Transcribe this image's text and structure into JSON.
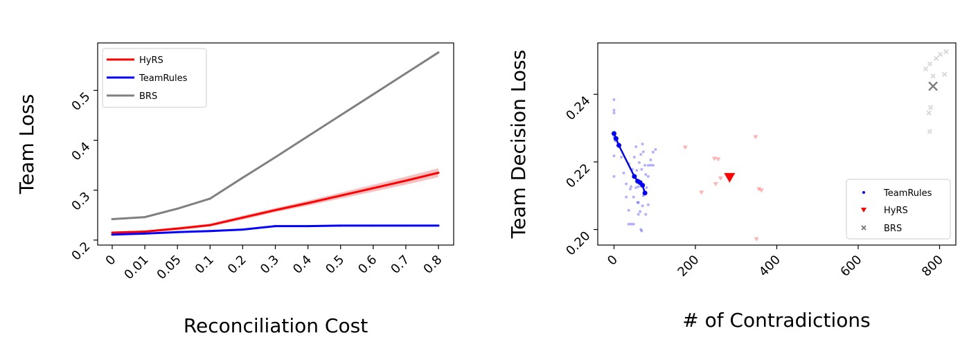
{
  "chart_data": [
    {
      "type": "line",
      "xlabel": "Reconciliation Cost",
      "ylabel": "Team Loss",
      "categories": [
        "0",
        "0.01",
        "0.05",
        "0.1",
        "0.2",
        "0.3",
        "0.4",
        "0.5",
        "0.6",
        "0.7",
        "0.8"
      ],
      "ylim": [
        0.19,
        0.595
      ],
      "yticks": [
        0.2,
        0.3,
        0.4,
        0.5
      ],
      "ytick_labels": [
        "0.2",
        "0.3",
        "0.4",
        "0.5"
      ],
      "legend_position": "top-left",
      "grid": false,
      "series": [
        {
          "name": "HyRS",
          "color": "#ff0000",
          "band_color": "#f4a6a6",
          "values": [
            0.215,
            0.217,
            0.223,
            0.23,
            0.245,
            0.26,
            0.274,
            0.289,
            0.304,
            0.319,
            0.335
          ],
          "band": [
            0.002,
            0.002,
            0.003,
            0.003,
            0.004,
            0.004,
            0.005,
            0.006,
            0.007,
            0.008,
            0.009
          ]
        },
        {
          "name": "TeamRules",
          "color": "#0000ff",
          "band_color": "#a6a6f4",
          "values": [
            0.211,
            0.213,
            0.216,
            0.218,
            0.221,
            0.228,
            0.228,
            0.229,
            0.229,
            0.229,
            0.229
          ],
          "band": [
            0.001,
            0.001,
            0.001,
            0.001,
            0.001,
            0.001,
            0.001,
            0.001,
            0.001,
            0.001,
            0.001
          ]
        },
        {
          "name": "BRS",
          "color": "#808080",
          "band_color": "#cccccc",
          "values": [
            0.242,
            0.246,
            0.263,
            0.283,
            0.325,
            0.366,
            0.408,
            0.45,
            0.492,
            0.534,
            0.576
          ],
          "band": [
            0.002,
            0.002,
            0.002,
            0.002,
            0.002,
            0.002,
            0.002,
            0.002,
            0.002,
            0.002,
            0.003
          ]
        }
      ]
    },
    {
      "type": "scatter",
      "xlabel": "# of Contradictions",
      "ylabel": "Team Decision Loss",
      "xlim": [
        -40,
        840
      ],
      "ylim": [
        0.1954,
        0.2552
      ],
      "xticks": [
        0,
        200,
        400,
        600,
        800
      ],
      "xtick_labels": [
        "0",
        "200",
        "400",
        "600",
        "800"
      ],
      "yticks": [
        0.2,
        0.22,
        0.24
      ],
      "ytick_labels": [
        "0.20",
        "0.22",
        "0.24"
      ],
      "legend_position": "lower-right",
      "grid": false,
      "series": [
        {
          "name": "TeamRules",
          "color": "#0000ff",
          "marker": "circle",
          "points": [
            [
              0,
              0.2384
            ],
            [
              0,
              0.2353
            ],
            [
              0,
              0.2345
            ],
            [
              0,
              0.2274
            ],
            [
              3,
              0.2262
            ],
            [
              0,
              0.2218
            ],
            [
              0,
              0.2157
            ],
            [
              18,
              0.2214
            ],
            [
              24,
              0.2167
            ],
            [
              30,
              0.2096
            ],
            [
              36,
              0.2057
            ],
            [
              36,
              0.2016
            ],
            [
              42,
              0.2016
            ],
            [
              48,
              0.2016
            ],
            [
              48,
              0.2096
            ],
            [
              42,
              0.2127
            ],
            [
              45,
              0.2178
            ],
            [
              50,
              0.2214
            ],
            [
              54,
              0.2245
            ],
            [
              56,
              0.2175
            ],
            [
              60,
              0.2127
            ],
            [
              60,
              0.208
            ],
            [
              60,
              0.2045
            ],
            [
              66,
              0.2
            ],
            [
              68,
              0.1996
            ],
            [
              70,
              0.207
            ],
            [
              72,
              0.21
            ],
            [
              66,
              0.2139
            ],
            [
              68,
              0.2178
            ],
            [
              62,
              0.2198
            ],
            [
              66,
              0.2222
            ],
            [
              70,
              0.2253
            ],
            [
              72,
              0.223
            ],
            [
              76,
              0.219
            ],
            [
              78,
              0.2163
            ],
            [
              80,
              0.2124
            ],
            [
              84,
              0.2157
            ],
            [
              84,
              0.219
            ],
            [
              84,
              0.2073
            ],
            [
              78,
              0.2045
            ],
            [
              90,
              0.2206
            ],
            [
              96,
              0.219
            ],
            [
              90,
              0.219
            ],
            [
              96,
              0.2229
            ],
            [
              102,
              0.2237
            ],
            [
              54,
              0.2124
            ],
            [
              48,
              0.2155
            ],
            [
              40,
              0.212
            ],
            [
              30,
              0.2135
            ],
            [
              36,
              0.2194
            ],
            [
              58,
              0.208
            ],
            [
              64,
              0.2053
            ]
          ],
          "mean_path": [
            [
              0,
              0.2284
            ],
            [
              5,
              0.2269
            ],
            [
              12,
              0.2249
            ],
            [
              50,
              0.2157
            ],
            [
              58,
              0.2143
            ],
            [
              64,
              0.2139
            ],
            [
              70,
              0.2131
            ],
            [
              76,
              0.2108
            ]
          ]
        },
        {
          "name": "HyRS",
          "color": "#ff0000",
          "marker": "triangle-down",
          "points": [
            [
              175,
              0.2243
            ],
            [
              215,
              0.211
            ],
            [
              247,
              0.221
            ],
            [
              256,
              0.2208
            ],
            [
              250,
              0.2135
            ],
            [
              262,
              0.2152
            ],
            [
              348,
              0.2274
            ],
            [
              356,
              0.212
            ],
            [
              362,
              0.2116
            ],
            [
              350,
              0.1972
            ]
          ],
          "mean": [
            284,
            0.2155
          ]
        },
        {
          "name": "BRS",
          "color": "#808080",
          "marker": "x",
          "points": [
            [
              766,
              0.2475
            ],
            [
              776,
              0.249
            ],
            [
              784,
              0.2454
            ],
            [
              774,
              0.2345
            ],
            [
              778,
              0.2361
            ],
            [
              776,
              0.229
            ],
            [
              792,
              0.2506
            ],
            [
              802,
              0.2518
            ],
            [
              816,
              0.2526
            ],
            [
              812,
              0.2459
            ]
          ],
          "mean": [
            784,
            0.2424
          ]
        }
      ]
    }
  ]
}
